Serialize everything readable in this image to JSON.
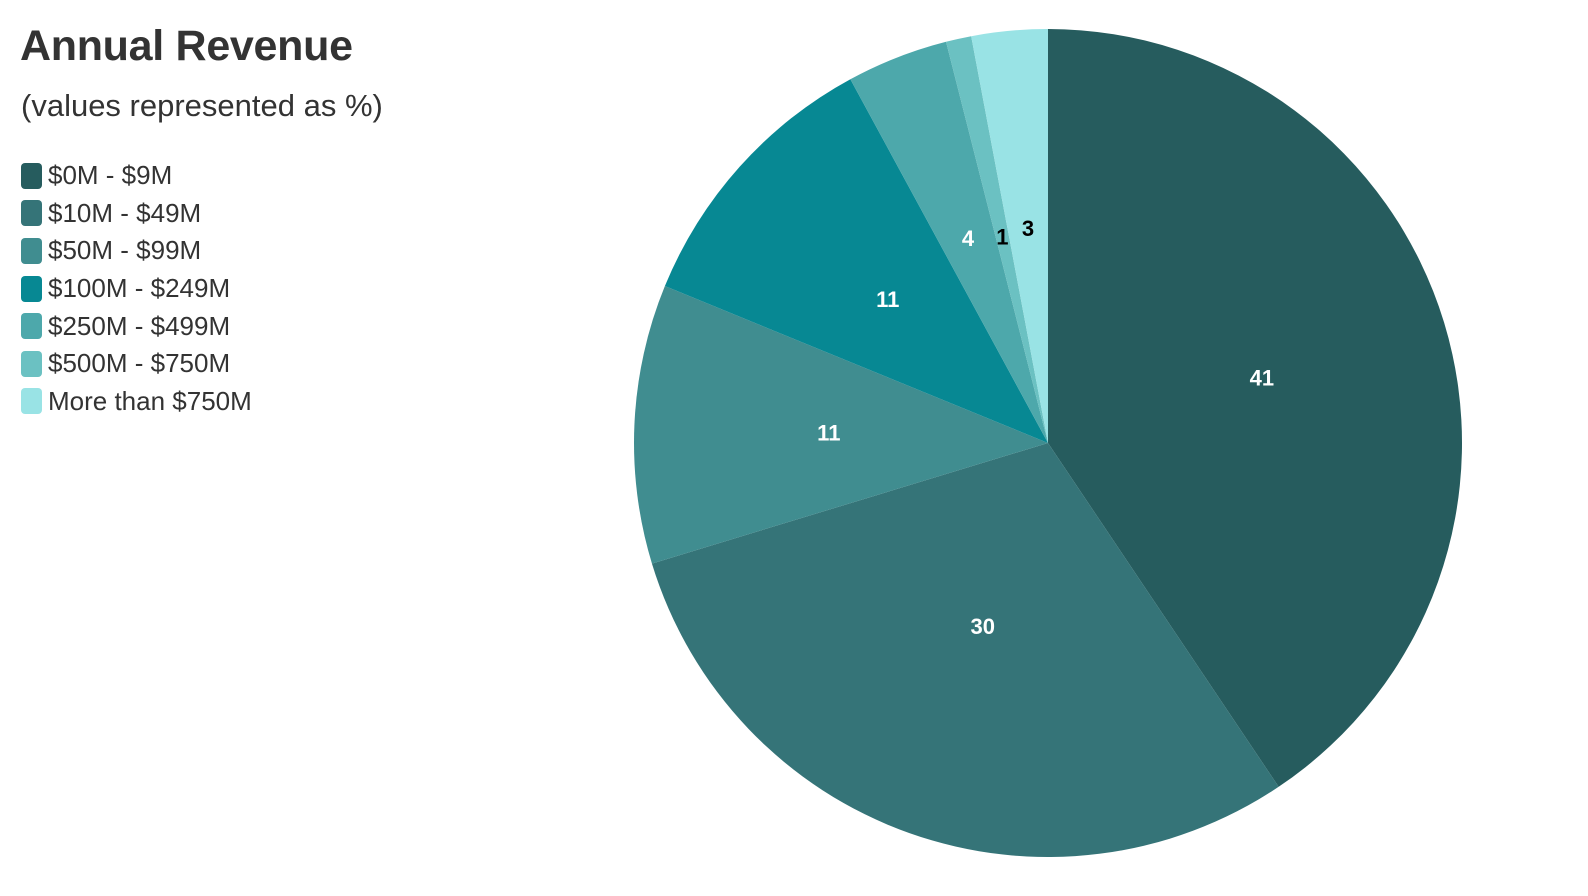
{
  "chart_data": {
    "type": "pie",
    "title": "Annual Revenue",
    "subtitle": "(values represented as %)",
    "legend_position": "top-left",
    "categories": [
      "$0M - $9M",
      "$10M - $49M",
      "$50M - $99M",
      "$100M - $249M",
      "$250M - $499M",
      "$500M - $750M",
      "More than $750M"
    ],
    "values": [
      41,
      30,
      11,
      11,
      4,
      1,
      3
    ],
    "colors": [
      "#265c5e",
      "#357478",
      "#408d90",
      "#078893",
      "#4da8ab",
      "#6bc1c2",
      "#99e3e5"
    ],
    "label_colors": [
      "#ffffff",
      "#ffffff",
      "#ffffff",
      "#ffffff",
      "#ffffff",
      "#000000",
      "#000000"
    ]
  }
}
